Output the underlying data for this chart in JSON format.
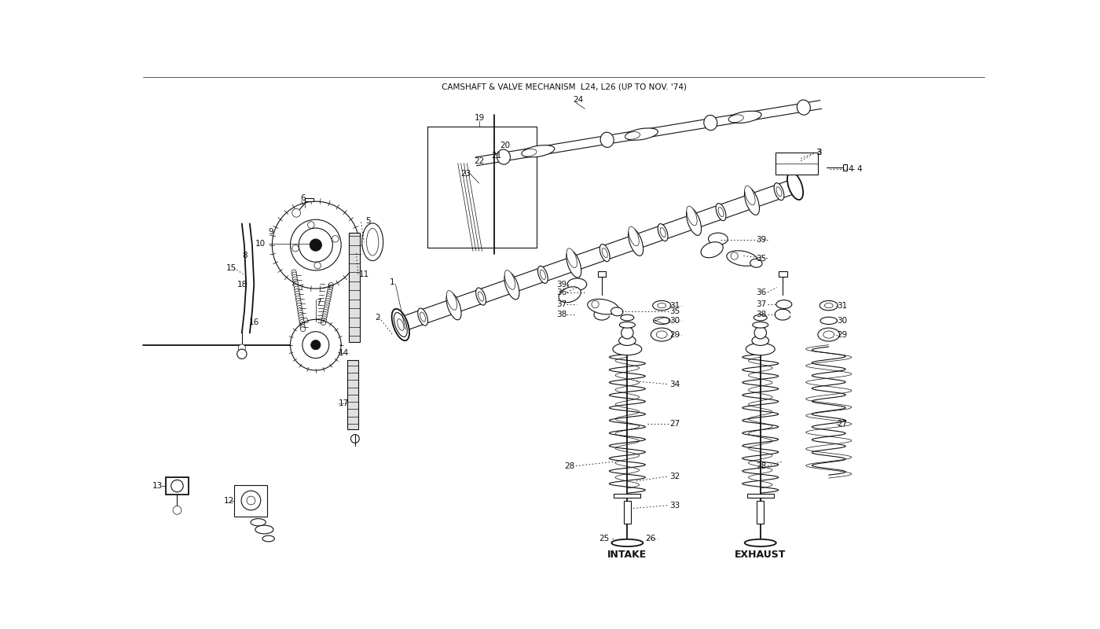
{
  "title": "CAMSHAFT & VALVE MECHANISM  L24, L26 (UP TO NOV. '74)",
  "bg": "#ffffff",
  "lc": "#111111",
  "fig_w": 14.0,
  "fig_h": 8.0,
  "intake_label": "INTAKE",
  "exhaust_label": "EXHAUST",
  "xlim": [
    0,
    14
  ],
  "ylim": [
    0,
    8
  ]
}
